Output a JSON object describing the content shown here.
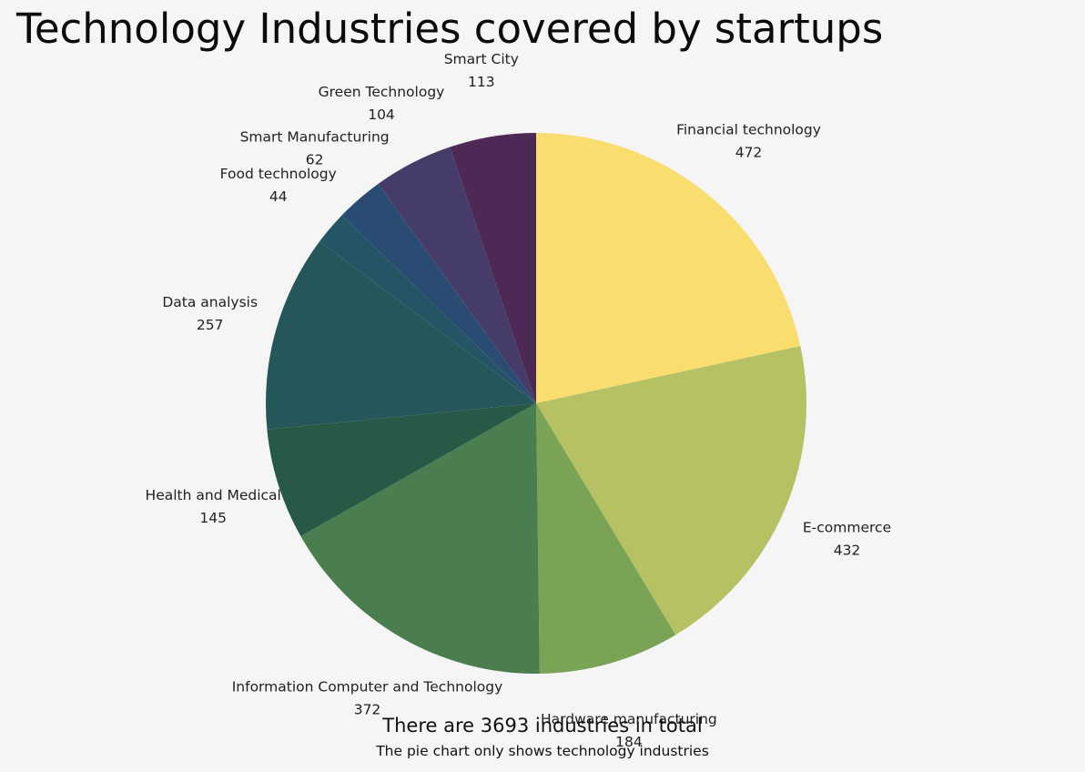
{
  "title": "Technology Industries covered by startups",
  "footer": {
    "total_text": "There are 3693 industries in total",
    "note_text": "The pie chart only shows technology industries"
  },
  "chart_data": {
    "type": "pie",
    "title": "Technology Industries covered by startups",
    "start": "12 o'clock",
    "direction": "clockwise",
    "labels_show": [
      "name",
      "value"
    ],
    "slices": [
      {
        "name": "Financial technology",
        "value": 472,
        "color": "#f9dd6e"
      },
      {
        "name": "E-commerce",
        "value": 432,
        "color": "#b5c163"
      },
      {
        "name": "Hardware manufacturing",
        "value": 184,
        "color": "#7ba356"
      },
      {
        "name": "Information Computer and Technology",
        "value": 372,
        "color": "#4a7d50"
      },
      {
        "name": "Health and Medical",
        "value": 145,
        "color": "#265946"
      },
      {
        "name": "Data analysis",
        "value": 257,
        "color": "#25575a"
      },
      {
        "name": "Food technology",
        "value": 44,
        "color": "#235565"
      },
      {
        "name": "Smart Manufacturing",
        "value": 62,
        "color": "#2a4b72"
      },
      {
        "name": "Green Technology",
        "value": 104,
        "color": "#463c6a"
      },
      {
        "name": "Smart City",
        "value": 113,
        "color": "#4d2a55"
      }
    ]
  }
}
